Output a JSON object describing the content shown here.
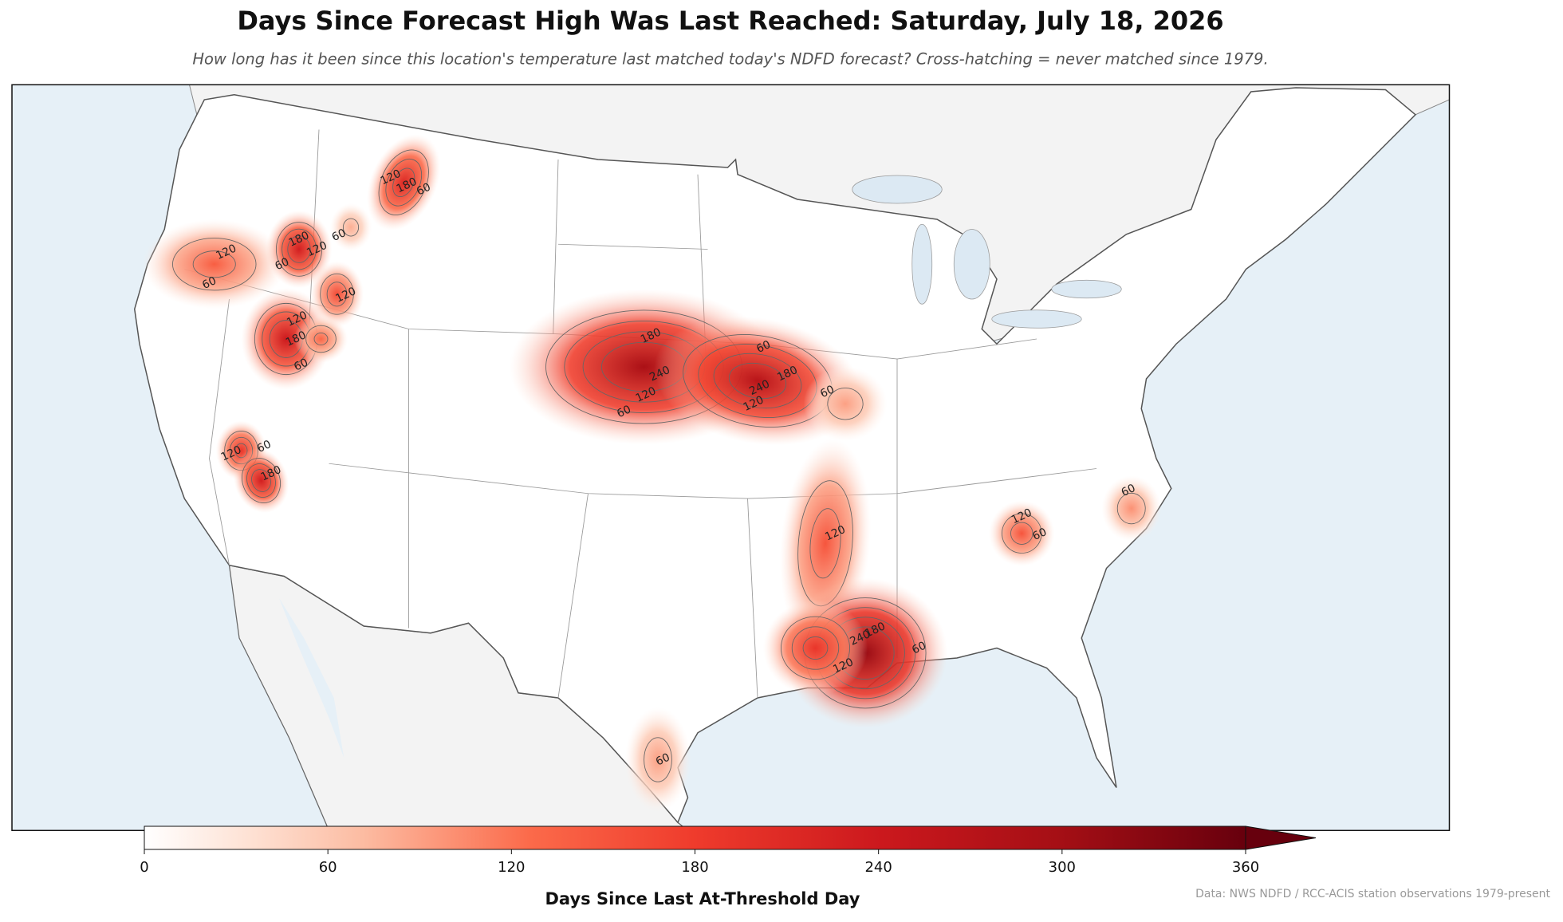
{
  "title": "Days Since Forecast High Was Last Reached: Saturday, July 18, 2026",
  "subtitle": "How long has it been since this location's temperature last matched today's NDFD forecast? Cross-hatching = never matched since 1979.",
  "colorbar": {
    "label": "Days Since Last At-Threshold Day",
    "lim": [
      0,
      360
    ],
    "ticks": [
      0,
      60,
      120,
      180,
      240,
      300,
      360
    ],
    "colormap": "Reds",
    "extend": "max"
  },
  "contour_levels": [
    60,
    120,
    180,
    240
  ],
  "hotspots": [
    {
      "peak": 140
    },
    {
      "peak": 230
    },
    {
      "peak": 210
    },
    {
      "peak": 80
    },
    {
      "peak": 160
    },
    {
      "peak": 240
    },
    {
      "peak": 130
    },
    {
      "peak": 190
    },
    {
      "peak": 230
    },
    {
      "peak": 290
    },
    {
      "peak": 270
    },
    {
      "peak": 90
    },
    {
      "peak": 150
    },
    {
      "peak": 310
    },
    {
      "peak": 190
    },
    {
      "peak": 150
    },
    {
      "peak": 100
    },
    {
      "peak": 90
    }
  ],
  "contour_labels": [
    120,
    60,
    180,
    120,
    60,
    120,
    180,
    60,
    60,
    120,
    120,
    180,
    60,
    180,
    240,
    120,
    60,
    60,
    180,
    240,
    120,
    60,
    60,
    120,
    180,
    120,
    180,
    240,
    60,
    120,
    120,
    60,
    60,
    60
  ],
  "source": "Data: NWS NDFD / RCC-ACIS station observations 1979-present"
}
